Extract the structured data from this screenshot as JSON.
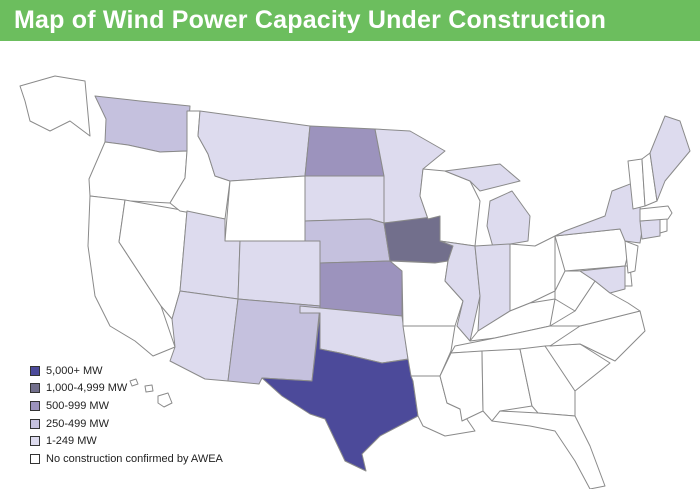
{
  "title": "Map of Wind Power Capacity Under Construction",
  "colors": {
    "title_bar": "#6cbe5e",
    "tier_5000_plus": "#4c4a9a",
    "tier_1000_4999": "#726f8c",
    "tier_500_999": "#9c93bd",
    "tier_250_499": "#c5c1de",
    "tier_1_249": "#dddbee",
    "none": "#ffffff"
  },
  "legend": [
    {
      "label": "5,000+ MW",
      "tier": "tier_5000_plus"
    },
    {
      "label": "1,000-4,999 MW",
      "tier": "tier_1000_4999"
    },
    {
      "label": "500-999 MW",
      "tier": "tier_500_999"
    },
    {
      "label": "250-499 MW",
      "tier": "tier_250_499"
    },
    {
      "label": "1-249 MW",
      "tier": "tier_1_249"
    },
    {
      "label": "No construction confirmed by AWEA",
      "tier": "none"
    }
  ],
  "states": {
    "TX": "tier_5000_plus",
    "IA": "tier_1000_4999",
    "ND": "tier_500_999",
    "KS": "tier_500_999",
    "WA": "tier_250_499",
    "NM": "tier_250_499",
    "NE": "tier_250_499",
    "MT": "tier_1_249",
    "SD": "tier_1_249",
    "MN": "tier_1_249",
    "UT": "tier_1_249",
    "CO": "tier_1_249",
    "AZ": "tier_1_249",
    "OK": "tier_1_249",
    "IL": "tier_1_249",
    "IN": "tier_1_249",
    "MI": "tier_1_249",
    "NY": "tier_1_249",
    "ME": "tier_1_249",
    "MD": "tier_1_249",
    "CT": "tier_1_249",
    "OR": "none",
    "ID": "none",
    "WY": "none",
    "NV": "none",
    "CA": "none",
    "MO": "none",
    "AR": "none",
    "LA": "none",
    "WI": "none",
    "OH": "none",
    "KY": "none",
    "TN": "none",
    "MS": "none",
    "AL": "none",
    "GA": "none",
    "FL": "none",
    "SC": "none",
    "NC": "none",
    "VA": "none",
    "WV": "none",
    "PA": "none",
    "NJ": "none",
    "DE": "none",
    "VT": "none",
    "NH": "none",
    "MA": "none",
    "RI": "none",
    "AK": "none",
    "HI": "none"
  }
}
